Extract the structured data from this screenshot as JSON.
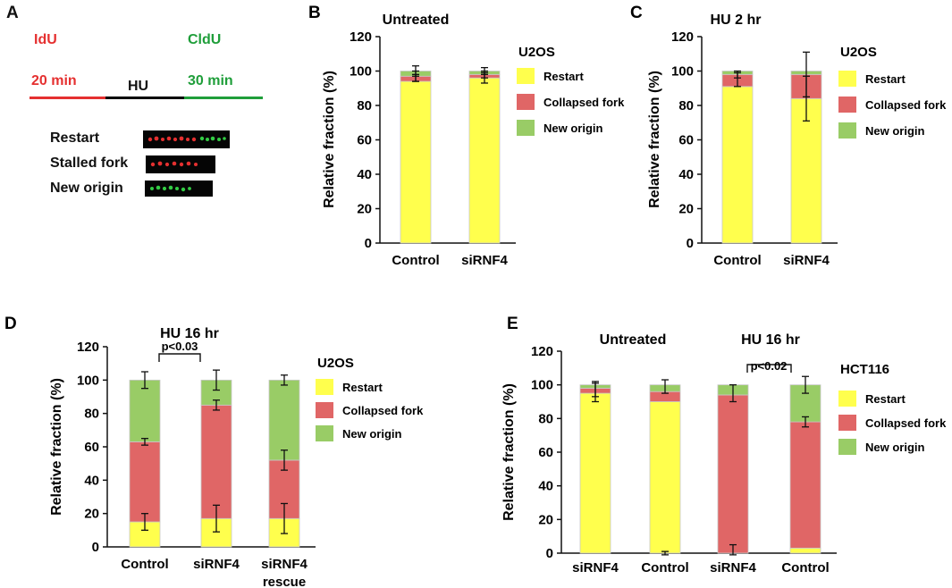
{
  "colors": {
    "restart": "#ffff4d",
    "collapsed": "#e06666",
    "origin": "#99cc66",
    "idu": "#e53030",
    "cldu": "#1f9e3a"
  },
  "panel_a": {
    "letter": "A",
    "idu_label": "IdU",
    "idu_time": "20 min",
    "hu_label": "HU",
    "cldu_label": "CldU",
    "cldu_time": "30 min",
    "examples": [
      "Restart",
      "Stalled fork",
      "New origin"
    ]
  },
  "chart_data": [
    {
      "letter": "B",
      "type": "bar",
      "stacked": true,
      "title": "Untreated",
      "ylabel": "Relative fraction (%)",
      "ylim": [
        0,
        120
      ],
      "yticks": [
        0,
        20,
        40,
        60,
        80,
        100,
        120
      ],
      "legend_title": "U2OS",
      "legend": [
        "Restart",
        "Collapsed fork",
        "New origin"
      ],
      "categories": [
        "Control",
        "siRNF4"
      ],
      "series": [
        {
          "name": "Restart",
          "values": [
            94,
            96
          ]
        },
        {
          "name": "Collapsed fork",
          "values": [
            3,
            2
          ]
        },
        {
          "name": "New origin",
          "values": [
            3,
            2
          ]
        }
      ],
      "errors": [
        [
          96,
          2
        ],
        [
          97,
          3
        ],
        [
          100,
          3
        ],
        [
          96,
          3
        ],
        [
          98,
          2
        ],
        [
          100,
          2
        ]
      ]
    },
    {
      "letter": "C",
      "type": "bar",
      "stacked": true,
      "title": "HU 2 hr",
      "ylabel": "Relative fraction (%)",
      "ylim": [
        0,
        120
      ],
      "yticks": [
        0,
        20,
        40,
        60,
        80,
        100,
        120
      ],
      "legend_title": "U2OS",
      "legend": [
        "Restart",
        "Collapsed fork",
        "New origin"
      ],
      "categories": [
        "Control",
        "siRNF4"
      ],
      "series": [
        {
          "name": "Restart",
          "values": [
            91,
            84
          ]
        },
        {
          "name": "Collapsed fork",
          "values": [
            7,
            14
          ]
        },
        {
          "name": "New origin",
          "values": [
            2,
            2
          ]
        }
      ],
      "errors": [
        [
          95,
          4
        ],
        [
          98,
          2
        ],
        [
          84,
          13
        ],
        [
          98,
          13
        ]
      ]
    },
    {
      "letter": "D",
      "type": "bar",
      "stacked": true,
      "title": "HU 16 hr",
      "ylabel": "Relative fraction (%)",
      "ylim": [
        0,
        120
      ],
      "yticks": [
        0,
        20,
        40,
        60,
        80,
        100,
        120
      ],
      "legend_title": "U2OS",
      "legend": [
        "Restart",
        "Collapsed fork",
        "New origin"
      ],
      "categories": [
        "Control",
        "siRNF4",
        "siRNF4 rescue"
      ],
      "series": [
        {
          "name": "Restart",
          "values": [
            15,
            17,
            17
          ]
        },
        {
          "name": "Collapsed fork",
          "values": [
            48,
            68,
            35
          ]
        },
        {
          "name": "New origin",
          "values": [
            37,
            15,
            48
          ]
        }
      ],
      "errors": [
        [
          15,
          5
        ],
        [
          63,
          2
        ],
        [
          100,
          5
        ],
        [
          17,
          8
        ],
        [
          85,
          3
        ],
        [
          100,
          6
        ],
        [
          17,
          9
        ],
        [
          52,
          6
        ],
        [
          100,
          3
        ]
      ],
      "annotation": "p<0.03"
    },
    {
      "letter": "E",
      "type": "bar",
      "stacked": true,
      "titles": [
        "Untreated",
        "HU 16 hr"
      ],
      "ylabel": "Relative fraction (%)",
      "ylim": [
        0,
        120
      ],
      "yticks": [
        0,
        20,
        40,
        60,
        80,
        100,
        120
      ],
      "legend_title": "HCT116",
      "legend": [
        "Restart",
        "Collapsed fork",
        "New origin"
      ],
      "categories": [
        "siRNF4",
        "Control",
        "siRNF4",
        "Control"
      ],
      "series": [
        {
          "name": "Restart",
          "values": [
            95,
            90,
            0,
            3
          ]
        },
        {
          "name": "Collapsed fork",
          "values": [
            3,
            6,
            94,
            75
          ]
        },
        {
          "name": "New origin",
          "values": [
            2,
            4,
            6,
            22
          ]
        }
      ],
      "errors": [
        [
          97,
          4
        ],
        [
          96,
          6
        ],
        [
          99,
          4
        ],
        [
          0,
          1
        ],
        [
          95,
          5
        ],
        [
          2,
          3
        ],
        [
          78,
          3
        ],
        [
          100,
          5
        ]
      ],
      "annotation": "p<0.02"
    }
  ]
}
